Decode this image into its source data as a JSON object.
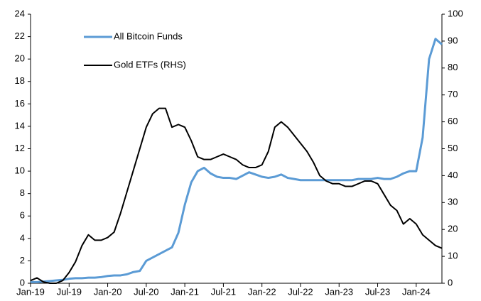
{
  "chart_data": {
    "type": "line",
    "categories": [
      "Jan-19",
      null,
      null,
      null,
      null,
      null,
      "Jul-19",
      null,
      null,
      null,
      null,
      null,
      "Jan-20",
      null,
      null,
      null,
      null,
      null,
      "Jul-20",
      null,
      null,
      null,
      null,
      null,
      "Jan-21",
      null,
      null,
      null,
      null,
      null,
      "Jul-21",
      null,
      null,
      null,
      null,
      null,
      "Jan-22",
      null,
      null,
      null,
      null,
      null,
      "Jul-22",
      null,
      null,
      null,
      null,
      null,
      "Jan-23",
      null,
      null,
      null,
      null,
      null,
      "Jul-23",
      null,
      null,
      null,
      null,
      null,
      "Jan-24",
      null,
      null,
      null,
      null
    ],
    "series": [
      {
        "name": "All Bitcoin Funds",
        "color": "#5b9bd5",
        "values": [
          0.1,
          0.1,
          0.15,
          0.2,
          0.25,
          0.3,
          0.4,
          0.45,
          0.45,
          0.5,
          0.5,
          0.55,
          0.65,
          0.7,
          0.7,
          0.8,
          1.0,
          1.1,
          2.0,
          2.3,
          2.6,
          2.9,
          3.2,
          4.5,
          7.0,
          9.0,
          10.0,
          10.3,
          9.8,
          9.5,
          9.4,
          9.4,
          9.3,
          9.6,
          9.9,
          9.7,
          9.5,
          9.4,
          9.5,
          9.7,
          9.4,
          9.3,
          9.2,
          9.2,
          9.2,
          9.2,
          9.2,
          9.2,
          9.2,
          9.2,
          9.2,
          9.3,
          9.3,
          9.3,
          9.4,
          9.3,
          9.3,
          9.5,
          9.8,
          10.0,
          10.0,
          13.0,
          20.0,
          21.8,
          21.3
        ]
      },
      {
        "name": "Gold ETFs (RHS)",
        "color": "#000000",
        "axis": "y2",
        "values": [
          1,
          2,
          0.5,
          0,
          0,
          1,
          4,
          8,
          14,
          18,
          16,
          16,
          17,
          19,
          26,
          34,
          42,
          50,
          58,
          63,
          65,
          65,
          58,
          59,
          58,
          53,
          47,
          46,
          46,
          47,
          48,
          47,
          46,
          44,
          43,
          43,
          44,
          49,
          58,
          60,
          58,
          55,
          52,
          49,
          45,
          40,
          38,
          37,
          37,
          36,
          36,
          37,
          38,
          38,
          37,
          33,
          29,
          27,
          22,
          24,
          22,
          18,
          16,
          14,
          13
        ]
      }
    ],
    "ylim": [
      0,
      24
    ],
    "yticks": [
      0,
      2,
      4,
      6,
      8,
      10,
      12,
      14,
      16,
      18,
      20,
      22,
      24
    ],
    "y2lim": [
      0,
      100
    ],
    "y2ticks": [
      0,
      10,
      20,
      30,
      40,
      50,
      60,
      70,
      80,
      90,
      100
    ],
    "legend": "upper-left",
    "grid": false
  }
}
